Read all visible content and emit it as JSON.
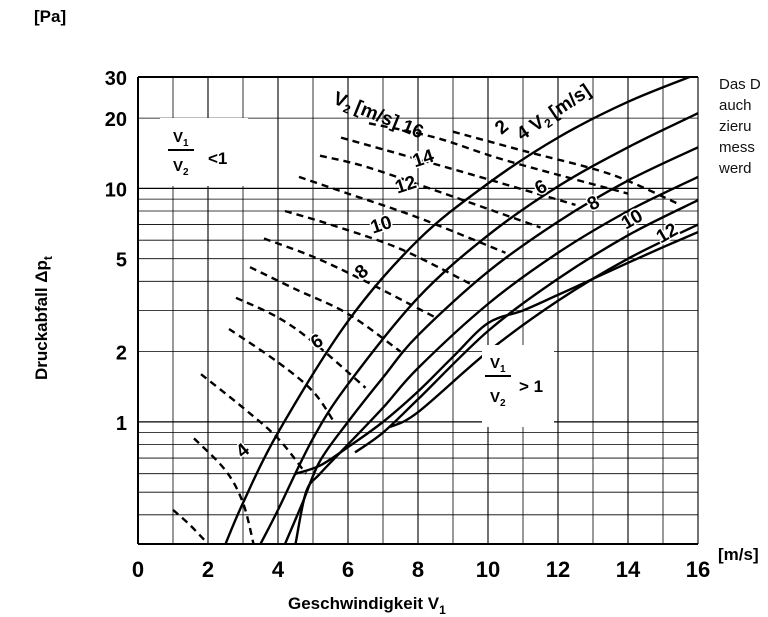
{
  "side_note_lines": [
    "Das D",
    "auch",
    "zieru",
    "mess",
    "werd"
  ],
  "chart_data": {
    "type": "line",
    "title": "",
    "xlabel": "Geschwindigkeit V",
    "xlabel_sub": "1",
    "ylabel": "Druckabfall Δp",
    "ylabel_sub": "t",
    "y_unit": "[Pa]",
    "x_unit": "[m/s]",
    "xlim": [
      0,
      16
    ],
    "ylim": [
      0.3,
      30
    ],
    "y_scale": "log",
    "grid": true,
    "x_ticks": [
      "0",
      "2",
      "4",
      "6",
      "8",
      "10",
      "12",
      "14",
      "16"
    ],
    "y_ticks": [
      {
        "label": "30",
        "value": 30
      },
      {
        "label": "20",
        "value": 20
      },
      {
        "label": "10",
        "value": 10
      },
      {
        "label": "5",
        "value": 5
      },
      {
        "label": "2",
        "value": 2
      },
      {
        "label": "1",
        "value": 1
      }
    ],
    "region_labels": {
      "lower": {
        "num": "V",
        "num_sub": "1",
        "den": "V",
        "den_sub": "2",
        "rel": "<1"
      },
      "upper": {
        "num": "V",
        "num_sub": "1",
        "den": "V",
        "den_sub": "2",
        "rel": "> 1"
      }
    },
    "solid_family_label": "4 V",
    "solid_family_label_sub": "2",
    "solid_family_unit": "[m/s]",
    "dashed_family_label": "V",
    "dashed_family_label_sub": "2",
    "dashed_family_unit": "[m/s] 16",
    "solid_series": [
      {
        "name": "2",
        "points": [
          [
            2.5,
            0.3
          ],
          [
            3,
            0.45
          ],
          [
            4,
            0.9
          ],
          [
            6,
            2.7
          ],
          [
            8,
            6
          ],
          [
            10,
            10.5
          ],
          [
            12,
            16.5
          ],
          [
            14,
            23.5
          ],
          [
            16,
            31
          ]
        ]
      },
      {
        "name": "4",
        "points": [
          [
            3.5,
            0.3
          ],
          [
            4,
            0.42
          ],
          [
            5,
            0.85
          ],
          [
            6,
            1.45
          ],
          [
            8,
            3.4
          ],
          [
            10,
            6.3
          ],
          [
            12,
            10.2
          ],
          [
            14,
            15
          ],
          [
            16,
            21
          ]
        ]
      },
      {
        "name": "6",
        "points": [
          [
            4.2,
            0.3
          ],
          [
            4.7,
            0.45
          ],
          [
            5.2,
            0.68
          ],
          [
            6,
            1.0
          ],
          [
            7,
            1.55
          ],
          [
            8,
            2.35
          ],
          [
            10,
            4.4
          ],
          [
            12,
            7.2
          ],
          [
            14,
            10.8
          ],
          [
            16,
            15
          ]
        ]
      },
      {
        "name": "8",
        "points": [
          [
            4.5,
            0.3
          ],
          [
            4.8,
            0.5
          ],
          [
            5.2,
            0.6
          ],
          [
            6,
            0.8
          ],
          [
            7,
            1.15
          ],
          [
            8,
            1.7
          ],
          [
            10,
            3.2
          ],
          [
            12,
            5.3
          ],
          [
            14,
            8
          ],
          [
            16,
            11.2
          ]
        ]
      },
      {
        "name": "10",
        "points": [
          [
            6.2,
            0.74
          ],
          [
            7,
            0.9
          ],
          [
            8,
            1.25
          ],
          [
            10,
            2.45
          ],
          [
            12,
            4.1
          ],
          [
            14,
            6.3
          ],
          [
            16,
            8.9
          ]
        ]
      },
      {
        "name": "12",
        "points": [
          [
            7.2,
            0.95
          ],
          [
            8,
            1.1
          ],
          [
            10,
            2.0
          ],
          [
            12,
            3.3
          ],
          [
            14,
            5.0
          ],
          [
            16,
            7.0
          ]
        ]
      }
    ],
    "upper_bound_points": [
      [
        4.5,
        0.6
      ],
      [
        5.2,
        0.65
      ],
      [
        6,
        0.78
      ],
      [
        7,
        1.0
      ],
      [
        8,
        1.35
      ],
      [
        9,
        1.9
      ],
      [
        10,
        2.65
      ],
      [
        11,
        3.0
      ],
      [
        12,
        3.5
      ],
      [
        13,
        4.1
      ],
      [
        14,
        4.8
      ],
      [
        15,
        5.6
      ],
      [
        16,
        6.5
      ]
    ],
    "dashed_series": [
      {
        "name": "4",
        "points": [
          [
            1,
            0.42
          ],
          [
            1.5,
            0.36
          ],
          [
            2,
            0.3
          ]
        ]
      },
      {
        "name": "4",
        "points": [
          [
            1.6,
            0.85
          ],
          [
            2.5,
            0.62
          ],
          [
            3,
            0.45
          ],
          [
            3.3,
            0.3
          ]
        ]
      },
      {
        "name": "6",
        "points": [
          [
            1.8,
            1.6
          ],
          [
            3,
            1.15
          ],
          [
            4,
            0.85
          ],
          [
            4.8,
            0.6
          ]
        ]
      },
      {
        "name": "6",
        "points": [
          [
            2.6,
            2.5
          ],
          [
            4,
            1.8
          ],
          [
            5,
            1.35
          ],
          [
            5.6,
            1.0
          ]
        ]
      },
      {
        "name": "8",
        "points": [
          [
            2.8,
            3.4
          ],
          [
            4,
            2.8
          ],
          [
            5,
            2.2
          ],
          [
            6.5,
            1.4
          ]
        ]
      },
      {
        "name": "8",
        "points": [
          [
            3.2,
            4.6
          ],
          [
            4.5,
            3.7
          ],
          [
            6,
            2.9
          ],
          [
            7.5,
            2.0
          ]
        ]
      },
      {
        "name": "10",
        "points": [
          [
            3.6,
            6.1
          ],
          [
            5,
            5.1
          ],
          [
            6.5,
            4.0
          ],
          [
            8.5,
            2.8
          ]
        ]
      },
      {
        "name": "10",
        "points": [
          [
            4.2,
            8.0
          ],
          [
            5.5,
            7.0
          ],
          [
            7.5,
            5.5
          ],
          [
            9.5,
            3.9
          ]
        ]
      },
      {
        "name": "12",
        "points": [
          [
            4.6,
            11.2
          ],
          [
            6,
            9.5
          ],
          [
            8,
            7.5
          ],
          [
            10.5,
            5.3
          ]
        ]
      },
      {
        "name": "12",
        "points": [
          [
            5.2,
            13.8
          ],
          [
            6.5,
            12.4
          ],
          [
            8.5,
            9.8
          ],
          [
            11.5,
            6.8
          ]
        ]
      },
      {
        "name": "14",
        "points": [
          [
            5.8,
            16.5
          ],
          [
            7.5,
            14
          ],
          [
            9.5,
            11.5
          ],
          [
            12.5,
            8.5
          ]
        ]
      },
      {
        "name": "14",
        "points": [
          [
            6.6,
            19
          ],
          [
            8.5,
            16.5
          ],
          [
            10.5,
            13.2
          ],
          [
            14,
            9.5
          ]
        ]
      },
      {
        "name": "16",
        "points": [
          [
            9,
            17.5
          ],
          [
            11,
            14.5
          ],
          [
            13.5,
            11.5
          ],
          [
            15.5,
            8.5
          ]
        ]
      }
    ],
    "curve_labels": [
      {
        "text": "2",
        "x": 10.5,
        "y": 17.5,
        "rot": -40
      },
      {
        "text": "6",
        "x": 11.6,
        "y": 9.6,
        "rot": -30
      },
      {
        "text": "8",
        "x": 13.1,
        "y": 8.2,
        "rot": -30
      },
      {
        "text": "10",
        "x": 14.2,
        "y": 7.0,
        "rot": -30
      },
      {
        "text": "12",
        "x": 15.2,
        "y": 6.1,
        "rot": -30
      },
      {
        "text": "14",
        "x": 8.2,
        "y": 12.7,
        "rot": -18
      },
      {
        "text": "12",
        "x": 7.7,
        "y": 9.8,
        "rot": -18
      },
      {
        "text": "10",
        "x": 7.0,
        "y": 6.6,
        "rot": -18
      },
      {
        "text": "8",
        "x": 6.5,
        "y": 4.2,
        "rot": -40
      },
      {
        "text": "6",
        "x": 5.2,
        "y": 2.1,
        "rot": -30
      },
      {
        "text": "4",
        "x": 3.1,
        "y": 0.72,
        "rot": -40
      }
    ]
  }
}
